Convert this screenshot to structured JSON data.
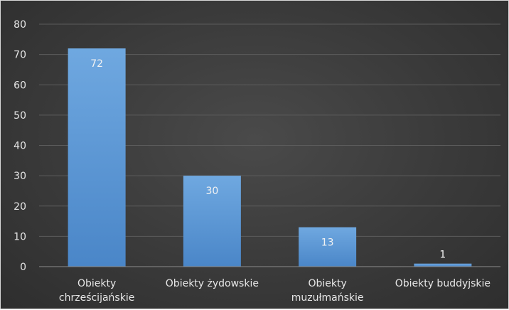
{
  "chart_data": {
    "type": "bar",
    "categories": [
      [
        "Obiekty",
        "chrześcijańskie"
      ],
      [
        "Obiekty żydowskie"
      ],
      [
        "Obiekty",
        "muzułmańskie"
      ],
      [
        "Obiekty buddyjskie"
      ]
    ],
    "values": [
      72,
      30,
      13,
      1
    ],
    "data_labels": [
      "72",
      "30",
      "13",
      "1"
    ],
    "ylim": [
      0,
      80
    ],
    "yticks": [
      0,
      10,
      20,
      30,
      40,
      50,
      60,
      70,
      80
    ],
    "ytick_labels": [
      "0",
      "10",
      "20",
      "30",
      "40",
      "50",
      "60",
      "70",
      "80"
    ],
    "grid": true,
    "title": "",
    "xlabel": "",
    "ylabel": "",
    "colors": {
      "bar_top": "#6fa8e0",
      "bar_bottom": "#4a86c8",
      "background": "#3a3a3a"
    }
  }
}
